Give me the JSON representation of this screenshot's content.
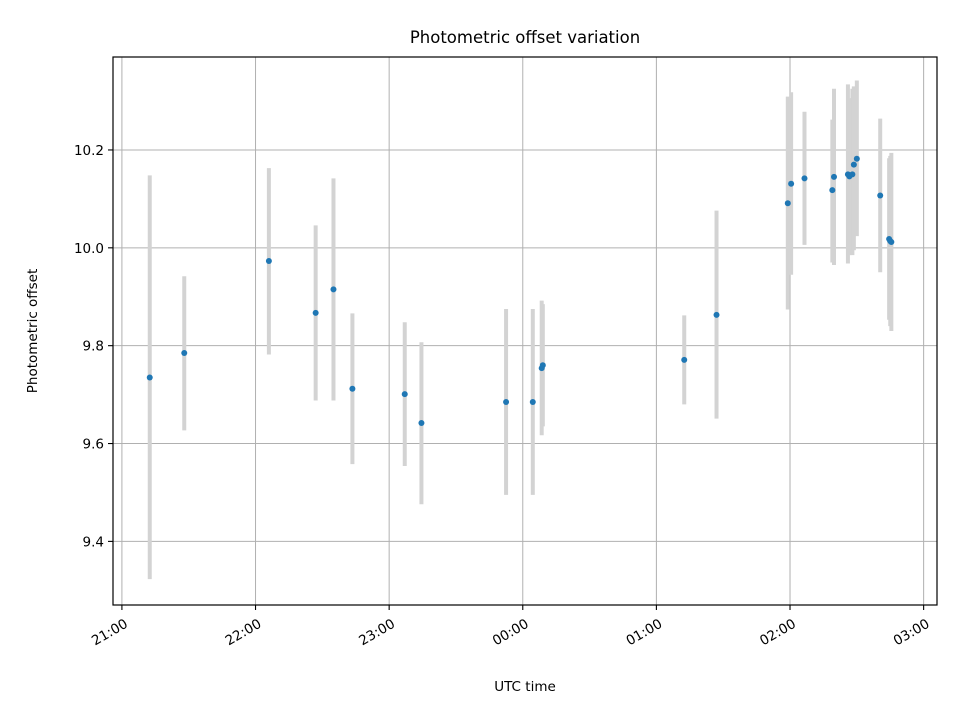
{
  "chart_data": {
    "type": "scatter",
    "title": "Photometric offset variation",
    "xlabel": "UTC time",
    "ylabel": "Photometric offset",
    "x_ticks": [
      "21:00",
      "22:00",
      "23:00",
      "00:00",
      "01:00",
      "02:00",
      "03:00"
    ],
    "y_ticks": [
      "9.4",
      "9.6",
      "9.8",
      "10.0",
      "10.2"
    ],
    "xlim": [
      "20:56",
      "03:06"
    ],
    "ylim": [
      9.27,
      10.39
    ],
    "grid": true,
    "legend": "none",
    "point_color": "#1f77b4",
    "errorbar_color": "#d3d3d3",
    "points": [
      {
        "t": "21:12:30",
        "y": 9.735,
        "lo": 9.323,
        "hi": 10.148
      },
      {
        "t": "21:28:00",
        "y": 9.785,
        "lo": 9.627,
        "hi": 9.942
      },
      {
        "t": "22:06:00",
        "y": 9.973,
        "lo": 9.782,
        "hi": 10.163
      },
      {
        "t": "22:27:00",
        "y": 9.867,
        "lo": 9.688,
        "hi": 10.046
      },
      {
        "t": "22:35:00",
        "y": 9.915,
        "lo": 9.688,
        "hi": 10.142
      },
      {
        "t": "22:43:30",
        "y": 9.712,
        "lo": 9.558,
        "hi": 9.866
      },
      {
        "t": "23:07:00",
        "y": 9.701,
        "lo": 9.554,
        "hi": 9.848
      },
      {
        "t": "23:14:30",
        "y": 9.642,
        "lo": 9.476,
        "hi": 9.807
      },
      {
        "t": "23:52:30",
        "y": 9.685,
        "lo": 9.495,
        "hi": 9.875
      },
      {
        "t": "00:04:30",
        "y": 9.685,
        "lo": 9.495,
        "hi": 9.875
      },
      {
        "t": "00:08:30",
        "y": 9.754,
        "lo": 9.617,
        "hi": 9.892
      },
      {
        "t": "00:09:00",
        "y": 9.76,
        "lo": 9.635,
        "hi": 9.885
      },
      {
        "t": "01:12:30",
        "y": 9.771,
        "lo": 9.68,
        "hi": 9.862
      },
      {
        "t": "01:27:00",
        "y": 9.863,
        "lo": 9.651,
        "hi": 10.076
      },
      {
        "t": "01:59:00",
        "y": 10.091,
        "lo": 9.874,
        "hi": 10.309
      },
      {
        "t": "02:00:30",
        "y": 10.131,
        "lo": 9.945,
        "hi": 10.318
      },
      {
        "t": "02:06:30",
        "y": 10.142,
        "lo": 10.006,
        "hi": 10.278
      },
      {
        "t": "02:19:00",
        "y": 10.118,
        "lo": 9.97,
        "hi": 10.262
      },
      {
        "t": "02:19:45",
        "y": 10.145,
        "lo": 9.965,
        "hi": 10.325
      },
      {
        "t": "02:26:00",
        "y": 10.15,
        "lo": 9.968,
        "hi": 10.334
      },
      {
        "t": "02:26:40",
        "y": 10.146,
        "lo": 9.985,
        "hi": 10.306
      },
      {
        "t": "02:28:00",
        "y": 10.15,
        "lo": 9.985,
        "hi": 10.325
      },
      {
        "t": "02:28:40",
        "y": 10.17,
        "lo": 9.995,
        "hi": 10.33
      },
      {
        "t": "02:30:00",
        "y": 10.182,
        "lo": 10.024,
        "hi": 10.342
      },
      {
        "t": "02:40:30",
        "y": 10.107,
        "lo": 9.95,
        "hi": 10.264
      },
      {
        "t": "02:44:30",
        "y": 10.018,
        "lo": 9.853,
        "hi": 10.183
      },
      {
        "t": "02:45:00",
        "y": 10.014,
        "lo": 9.84,
        "hi": 10.188
      },
      {
        "t": "02:45:30",
        "y": 10.012,
        "lo": 9.83,
        "hi": 10.194
      }
    ]
  }
}
